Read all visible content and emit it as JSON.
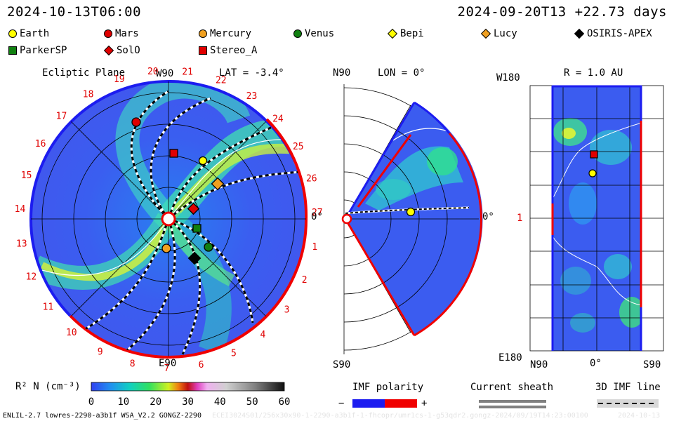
{
  "header": {
    "time_left": "2024-10-13T06:00",
    "time_right": "2024-09-20T13 +22.73 days"
  },
  "legend": [
    {
      "label": "Earth",
      "shape": "circle",
      "color": "#ffff00"
    },
    {
      "label": "Mars",
      "shape": "circle",
      "color": "#e00000"
    },
    {
      "label": "Mercury",
      "shape": "circle",
      "color": "#f0a020"
    },
    {
      "label": "Venus",
      "shape": "circle",
      "color": "#108010"
    },
    {
      "label": "Bepi",
      "shape": "diamond",
      "color": "#ffff00"
    },
    {
      "label": "Lucy",
      "shape": "diamond",
      "color": "#f0a020"
    },
    {
      "label": "OSIRIS-APEX",
      "shape": "diamond",
      "color": "#000000"
    },
    {
      "label": "ParkerSP",
      "shape": "square",
      "color": "#108010"
    },
    {
      "label": "SolO",
      "shape": "diamond",
      "color": "#e00000"
    },
    {
      "label": "Stereo_A",
      "shape": "square",
      "color": "#e00000"
    }
  ],
  "panel_ecliptic": {
    "title": "Ecliptic Plane",
    "top_label": "W90",
    "lat_label": "LAT = -3.4°",
    "bottom_label": "E90",
    "right_label": "0°",
    "carrington_days": [
      "20",
      "21",
      "22",
      "23",
      "24",
      "25",
      "26",
      "27",
      "1",
      "2",
      "3",
      "4",
      "5",
      "6",
      "7",
      "8",
      "9",
      "10",
      "11",
      "12",
      "13",
      "14",
      "15",
      "16",
      "17",
      "18",
      "19"
    ]
  },
  "panel_meridional": {
    "top_label": "N90",
    "lon_label": "LON = 0°",
    "bottom_label": "S90",
    "right_label": "0°"
  },
  "panel_map": {
    "top_left_label": "W180",
    "r_label": "R = 1.0 AU",
    "mid_left_label": "1",
    "bottom_left_label": "E180",
    "bottom_labels": [
      "N90",
      "0°",
      "S90"
    ]
  },
  "colorbar": {
    "label": "R² N (cm⁻³)",
    "ticks": [
      "0",
      "10",
      "20",
      "30",
      "40",
      "50",
      "60"
    ]
  },
  "imf_polarity": {
    "title": "IMF polarity",
    "minus": "−",
    "plus": "+"
  },
  "current_sheath": {
    "title": "Current sheath"
  },
  "imf_line": {
    "title": "3D IMF line"
  },
  "footer": {
    "text": "ENLIL-2.7 lowres-2290-a3b1f WSA_V2.2 GONGZ-2290",
    "faint_text": "ECEI3024S01/256x30x90-1-2290-a3b1f-1-fhcopr/umr1cs-1-g53qdr2.gongz-2024/09/19T14:23:00100",
    "faint_right": "2024-10-13"
  },
  "colors": {
    "blue_polarity": "#1c1cf0",
    "red_polarity": "#f00000",
    "low_density": "#3050f0"
  }
}
